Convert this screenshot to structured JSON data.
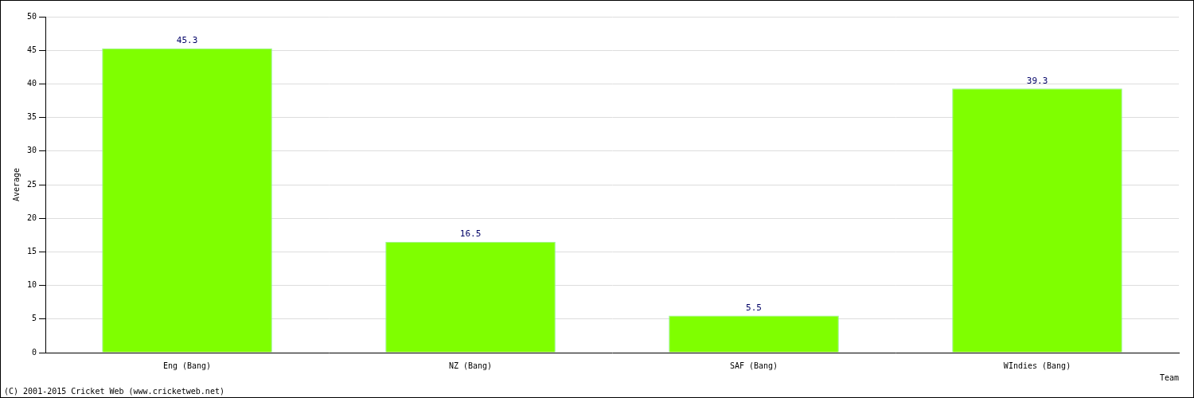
{
  "chart_data": {
    "type": "bar",
    "categories": [
      "Eng (Bang)",
      "NZ (Bang)",
      "SAF (Bang)",
      "WIndies (Bang)"
    ],
    "values": [
      45.3,
      16.5,
      5.5,
      39.3
    ],
    "color": "#7fff00",
    "x_label": "Team",
    "y_label": "Average",
    "ylim": [
      0,
      50
    ],
    "yticks": [
      0,
      5,
      10,
      15,
      20,
      25,
      30,
      35,
      40,
      45,
      50
    ],
    "grid": true,
    "data_labels": true,
    "annotations": [
      "(C) 2001-2015 Cricket Web (www.cricketweb.net)"
    ]
  }
}
